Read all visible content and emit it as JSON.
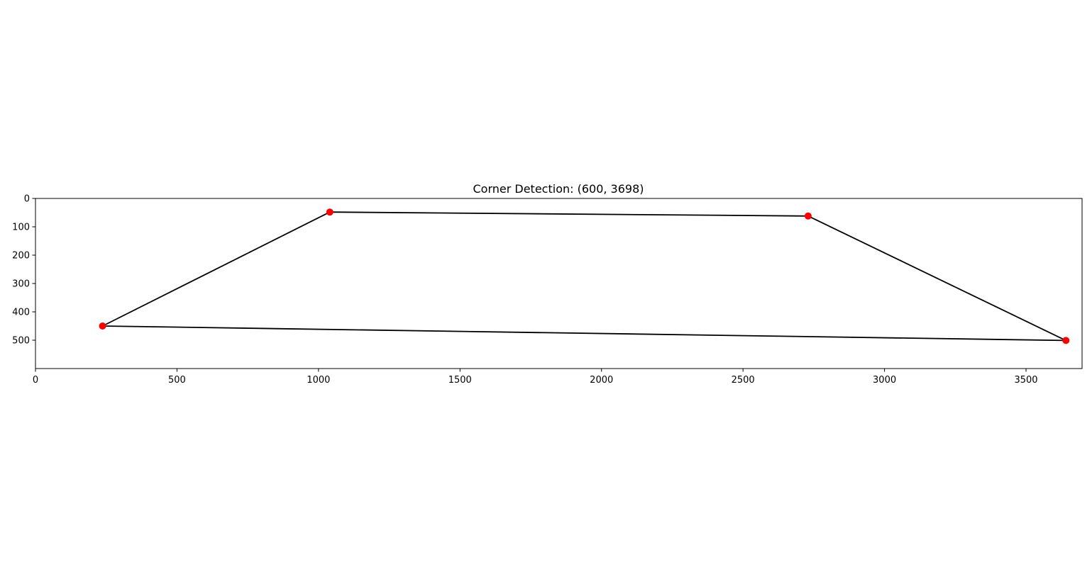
{
  "chart_data": {
    "type": "line",
    "title": "Corner Detection: (600, 3698)",
    "xlabel": "",
    "ylabel": "",
    "xlim": [
      0,
      3698
    ],
    "ylim": [
      600,
      0
    ],
    "y_inverted": true,
    "grid": false,
    "x_ticks": [
      0,
      500,
      1000,
      1500,
      2000,
      2500,
      3000,
      3500
    ],
    "y_ticks": [
      0,
      100,
      200,
      300,
      400,
      500
    ],
    "series": [
      {
        "kind": "polygon",
        "color": "#000000",
        "closed": true,
        "points": [
          {
            "x": 237,
            "y": 450
          },
          {
            "x": 1040,
            "y": 48
          },
          {
            "x": 2730,
            "y": 62
          },
          {
            "x": 3641,
            "y": 501
          }
        ]
      },
      {
        "kind": "corners",
        "color": "#ff0000",
        "points": [
          {
            "x": 237,
            "y": 450
          },
          {
            "x": 1040,
            "y": 48
          },
          {
            "x": 2730,
            "y": 62
          },
          {
            "x": 3641,
            "y": 501
          }
        ]
      }
    ]
  }
}
